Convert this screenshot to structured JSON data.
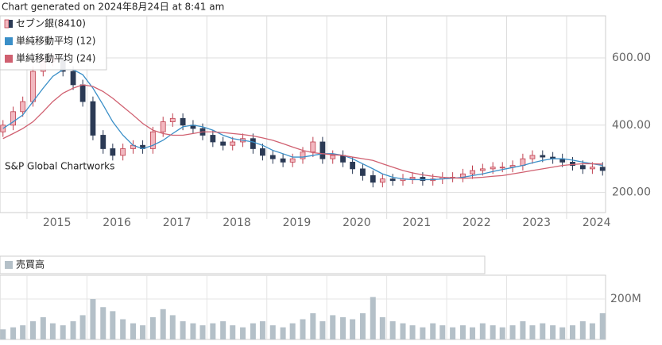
{
  "header": "Chart generated on 2024年8月24日 at 8:41 am",
  "chart_data": [
    {
      "type": "candlestick",
      "annotation": "S&P Global Chartworks",
      "legend": "top-left",
      "grid": true,
      "xlim": [
        2014.55,
        2024.65
      ],
      "xticks": [
        2015,
        2016,
        2017,
        2018,
        2019,
        2020,
        2021,
        2022,
        2023,
        2024
      ],
      "ylim": [
        140,
        725
      ],
      "yticks": [
        {
          "value": 200,
          "label": "200.00"
        },
        {
          "value": 400,
          "label": "400.00"
        },
        {
          "value": 600,
          "label": "600.00"
        }
      ],
      "x": [
        2014.6,
        2014.77,
        2014.93,
        2015.1,
        2015.27,
        2015.43,
        2015.6,
        2015.77,
        2015.93,
        2016.1,
        2016.27,
        2016.43,
        2016.6,
        2016.77,
        2016.93,
        2017.1,
        2017.27,
        2017.43,
        2017.6,
        2017.77,
        2017.93,
        2018.1,
        2018.27,
        2018.43,
        2018.6,
        2018.77,
        2018.93,
        2019.1,
        2019.27,
        2019.43,
        2019.6,
        2019.77,
        2019.93,
        2020.1,
        2020.27,
        2020.43,
        2020.6,
        2020.77,
        2020.93,
        2021.1,
        2021.27,
        2021.43,
        2021.6,
        2021.77,
        2021.93,
        2022.1,
        2022.27,
        2022.43,
        2022.6,
        2022.77,
        2022.93,
        2023.1,
        2023.27,
        2023.43,
        2023.6,
        2023.77,
        2023.93,
        2024.1,
        2024.27,
        2024.43,
        2024.6
      ],
      "series": [
        {
          "name": "セブン銀(8410)",
          "up_color": "#f2b8c0",
          "up_border": "#c0404f",
          "down_color": "#2b3a55",
          "open": [
            380,
            400,
            440,
            470,
            560,
            590,
            600,
            560,
            520,
            470,
            370,
            330,
            310,
            330,
            340,
            330,
            380,
            410,
            420,
            400,
            390,
            370,
            350,
            340,
            350,
            360,
            330,
            310,
            300,
            290,
            300,
            320,
            350,
            300,
            310,
            290,
            270,
            250,
            230,
            240,
            235,
            240,
            245,
            235,
            240,
            245,
            245,
            255,
            265,
            270,
            275,
            275,
            280,
            300,
            310,
            305,
            300,
            290,
            280,
            270,
            275
          ],
          "high": [
            415,
            455,
            485,
            575,
            605,
            615,
            615,
            575,
            535,
            485,
            385,
            345,
            345,
            355,
            355,
            395,
            425,
            435,
            435,
            415,
            405,
            385,
            365,
            365,
            375,
            375,
            345,
            325,
            315,
            315,
            335,
            365,
            365,
            325,
            325,
            305,
            285,
            265,
            255,
            255,
            255,
            260,
            260,
            255,
            260,
            260,
            270,
            280,
            285,
            290,
            290,
            295,
            315,
            325,
            325,
            320,
            315,
            305,
            295,
            290,
            290
          ],
          "low": [
            365,
            385,
            425,
            455,
            545,
            575,
            545,
            505,
            455,
            355,
            315,
            295,
            295,
            315,
            315,
            315,
            365,
            395,
            385,
            375,
            355,
            335,
            325,
            325,
            335,
            315,
            295,
            285,
            275,
            275,
            285,
            305,
            285,
            285,
            275,
            255,
            235,
            215,
            215,
            220,
            220,
            225,
            220,
            220,
            225,
            230,
            230,
            240,
            250,
            255,
            260,
            260,
            265,
            285,
            290,
            285,
            275,
            265,
            255,
            255,
            250
          ],
          "close": [
            400,
            440,
            470,
            560,
            590,
            600,
            560,
            520,
            470,
            370,
            330,
            310,
            330,
            340,
            330,
            380,
            410,
            420,
            400,
            390,
            370,
            350,
            340,
            350,
            360,
            330,
            310,
            300,
            290,
            300,
            320,
            350,
            300,
            310,
            290,
            270,
            250,
            230,
            240,
            235,
            240,
            245,
            235,
            240,
            245,
            245,
            255,
            265,
            270,
            275,
            275,
            280,
            300,
            310,
            305,
            300,
            290,
            280,
            270,
            275,
            265
          ]
        },
        {
          "name": "単純移動平均 (12)",
          "color": "#3a8fc8",
          "values": [
            390,
            410,
            430,
            470,
            510,
            545,
            565,
            565,
            550,
            510,
            460,
            410,
            370,
            340,
            330,
            340,
            355,
            375,
            395,
            400,
            395,
            385,
            370,
            360,
            355,
            350,
            340,
            325,
            315,
            305,
            305,
            310,
            315,
            315,
            310,
            300,
            285,
            270,
            255,
            245,
            240,
            238,
            238,
            238,
            240,
            242,
            245,
            250,
            255,
            262,
            268,
            274,
            280,
            288,
            295,
            300,
            300,
            296,
            290,
            285,
            280
          ]
        },
        {
          "name": "単純移動平均 (24)",
          "color": "#d06070",
          "values": [
            360,
            375,
            390,
            410,
            440,
            470,
            495,
            510,
            520,
            515,
            500,
            480,
            455,
            430,
            405,
            385,
            375,
            370,
            370,
            375,
            380,
            380,
            378,
            375,
            372,
            368,
            362,
            355,
            345,
            335,
            325,
            318,
            315,
            312,
            310,
            305,
            300,
            295,
            285,
            275,
            265,
            258,
            252,
            248,
            245,
            243,
            242,
            243,
            245,
            248,
            250,
            255,
            260,
            265,
            270,
            275,
            280,
            283,
            285,
            285,
            284
          ]
        }
      ]
    },
    {
      "type": "bar",
      "legend_label": "売買高",
      "color": "#b4c0c8",
      "ylim": [
        0,
        318
      ],
      "yticks": [
        {
          "value": 200,
          "label": "200M"
        }
      ],
      "values": [
        50,
        60,
        70,
        90,
        110,
        80,
        70,
        90,
        120,
        200,
        160,
        140,
        100,
        80,
        70,
        110,
        150,
        120,
        90,
        80,
        70,
        80,
        90,
        70,
        60,
        80,
        90,
        70,
        60,
        80,
        100,
        130,
        90,
        120,
        110,
        100,
        130,
        210,
        110,
        90,
        80,
        70,
        60,
        80,
        70,
        60,
        70,
        60,
        80,
        70,
        60,
        70,
        90,
        70,
        80,
        70,
        60,
        70,
        90,
        80,
        130
      ]
    }
  ]
}
